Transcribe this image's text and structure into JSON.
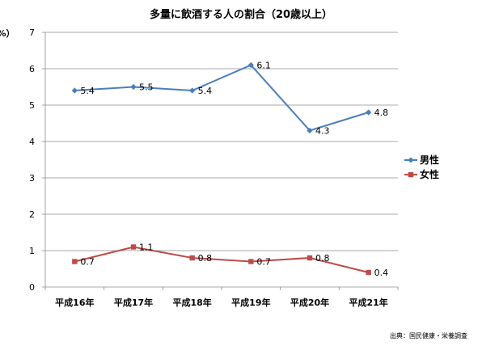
{
  "chart_data": {
    "type": "line",
    "title": "多量に飲酒する人の割合（20歳以上）",
    "ylabel": "（%）",
    "ylim": [
      0,
      7
    ],
    "yticks": [
      0,
      1,
      2,
      3,
      4,
      5,
      6,
      7
    ],
    "categories": [
      "平成16年",
      "平成17年",
      "平成18年",
      "平成19年",
      "平成20年",
      "平成21年"
    ],
    "series": [
      {
        "name": "男性",
        "values": [
          5.4,
          5.5,
          5.4,
          6.1,
          4.3,
          4.8
        ],
        "labels": [
          "5.4",
          "5.5",
          "5.4",
          "6.1",
          "4.3",
          "4.8"
        ],
        "color": "#4a7ebb",
        "marker": "diamond"
      },
      {
        "name": "女性",
        "values": [
          0.7,
          1.1,
          0.8,
          0.7,
          0.8,
          0.4
        ],
        "labels": [
          "0.7",
          "1.1",
          "0.8",
          "0.7",
          "0.8",
          "0.4"
        ],
        "color": "#be4b48",
        "marker": "square"
      }
    ],
    "grid": true,
    "legend": "right",
    "source": "出典：国民健康・栄養調査"
  }
}
